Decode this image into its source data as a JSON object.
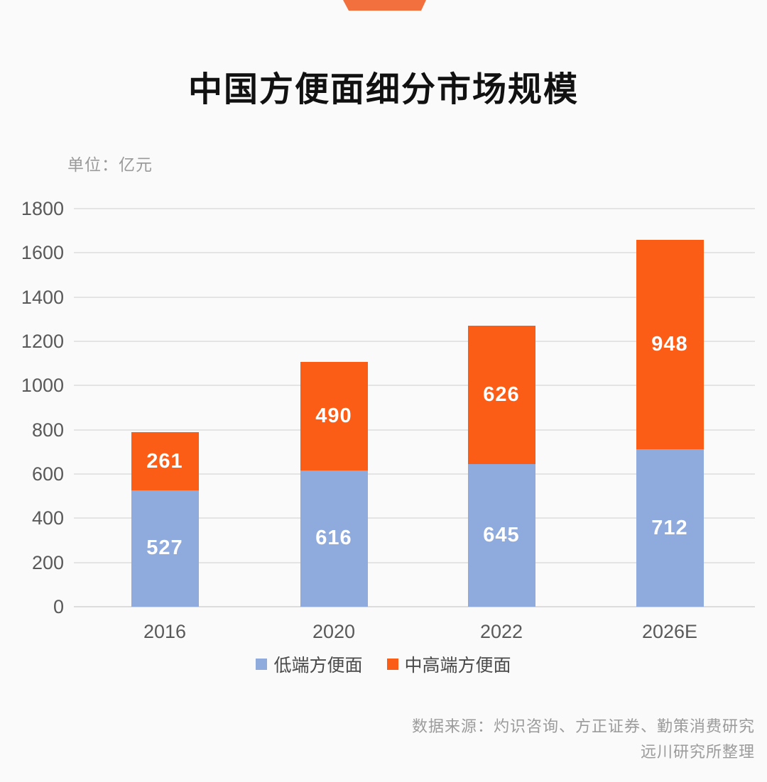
{
  "header": {
    "title": "中国方便面细分市场规模"
  },
  "chart_data": {
    "type": "bar",
    "stacked": true,
    "title": "中国方便面细分市场规模",
    "unit_label": "单位：亿元",
    "categories": [
      "2016",
      "2020",
      "2022",
      "2026E"
    ],
    "series": [
      {
        "name": "低端方便面",
        "color": "#8FAADC",
        "values": [
          527,
          616,
          645,
          712
        ]
      },
      {
        "name": "中高端方便面",
        "color": "#FB5C16",
        "values": [
          261,
          490,
          626,
          948
        ]
      }
    ],
    "totals": [
      788,
      1106,
      1271,
      1660
    ],
    "ylim": [
      0,
      1800
    ],
    "y_tick_step": 200,
    "y_tick_labels": [
      "0",
      "200",
      "400",
      "600",
      "800",
      "1000",
      "1200",
      "1400",
      "1600",
      "1800"
    ],
    "grid": true,
    "legend_position": "bottom",
    "value_labels": "inside-white",
    "colors": {
      "grid_line": "#e4e4e4",
      "axis_line": "#dcdcdc",
      "tick_text": "#595959",
      "value_text": "#ffffff"
    }
  },
  "decor": {
    "top_ribbon_color": "#F2703E"
  },
  "footer": {
    "source_line1": "数据来源：灼识咨询、方正证券、勤策消费研究",
    "source_line2": "远川研究所整理"
  }
}
